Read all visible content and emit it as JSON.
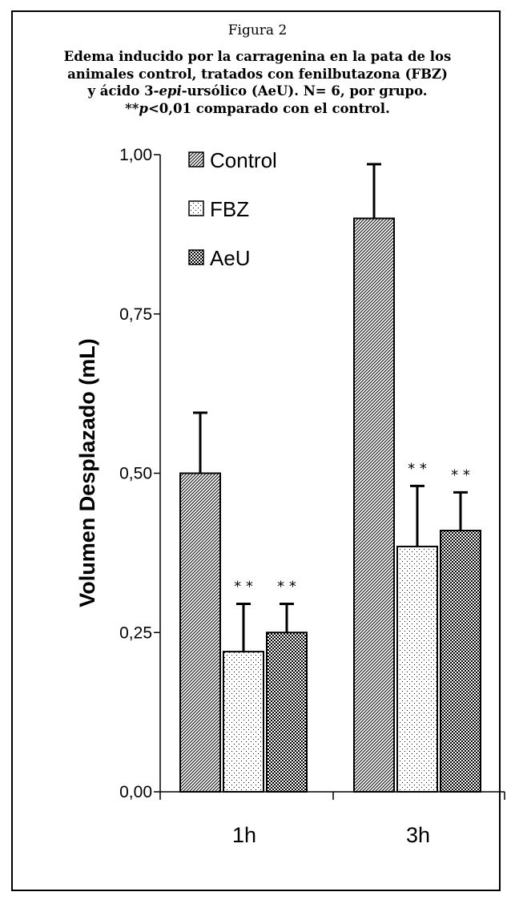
{
  "figure": {
    "label": "Figura 2",
    "caption_line1": "Edema inducido por la carragenina en la pata de los",
    "caption_line2": "animales control, tratados con fenilbutazona (FBZ)",
    "caption_line3_a": "y ácido 3-",
    "caption_line3_italic": "epi",
    "caption_line3_b": "-ursólico (AeU). N= 6, por grupo.",
    "caption_line4_a": "**",
    "caption_line4_italic": "p",
    "caption_line4_b": "<0,01 comparado con el control."
  },
  "chart_data": {
    "type": "bar",
    "title": "",
    "xlabel": "",
    "ylabel": "Volumen Desplazado (mL)",
    "categories": [
      "1h",
      "3h"
    ],
    "ylim": [
      0,
      1
    ],
    "yticks": [
      0,
      0.25,
      0.5,
      0.75,
      1
    ],
    "ytick_labels": [
      "0,00",
      "0,25",
      "0,50",
      "0,75",
      "1,00"
    ],
    "series": [
      {
        "name": "Control",
        "values": [
          0.5,
          0.9
        ],
        "errors": [
          0.095,
          0.085
        ],
        "significance": [
          "",
          ""
        ],
        "pattern": "diagonal"
      },
      {
        "name": "FBZ",
        "values": [
          0.22,
          0.385
        ],
        "errors": [
          0.075,
          0.095
        ],
        "significance": [
          "* *",
          "* *"
        ],
        "pattern": "dots"
      },
      {
        "name": "AeU",
        "values": [
          0.25,
          0.41
        ],
        "errors": [
          0.045,
          0.06
        ],
        "significance": [
          "* *",
          "* *"
        ],
        "pattern": "checker"
      }
    ],
    "legend_position": "top-left"
  }
}
